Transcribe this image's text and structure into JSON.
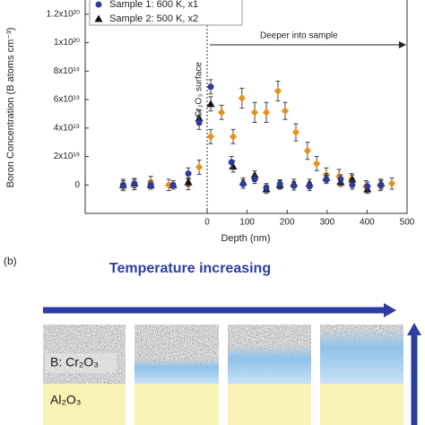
{
  "chart_data": {
    "type": "scatter",
    "xlabel": "Depth (nm)",
    "ylabel": "Boron Concentration (B atoms cm⁻³)",
    "annotations": [
      "Deeper into sample",
      "Cr₂O₃ surface"
    ],
    "xlim": [
      -305,
      500
    ],
    "xticks": [
      0,
      100,
      200,
      300,
      400,
      500
    ],
    "ylim": [
      -2e+19,
      1.3e+20
    ],
    "yticks": [
      0,
      {
        "value": 2e+19,
        "label": "2x10¹⁹"
      },
      {
        "value": 4e+19,
        "label": "4x10¹⁹"
      },
      {
        "value": 6e+19,
        "label": "6x10¹⁹"
      },
      {
        "value": 8e+19,
        "label": "8x10¹⁹"
      },
      {
        "value": 1e+20,
        "label": "1x10²⁰"
      },
      {
        "value": 1.2e+20,
        "label": "1.2x10²⁰"
      }
    ],
    "series": [
      {
        "name": "Sample 1: 600 K, x1",
        "color": "#2d3a9e",
        "marker": "circle",
        "x": [
          -210,
          -182,
          -141,
          -85,
          -47,
          -20,
          9,
          61,
          90,
          119,
          148,
          182,
          217,
          256,
          298,
          334,
          363,
          401,
          435
        ],
        "values": [
          0,
          1e+18,
          0,
          0,
          8e+18,
          4.4e+19,
          6.9e+19,
          1.6e+19,
          6e+17,
          4e+18,
          -2e+18,
          6e+17,
          -6e+17,
          -1e+18,
          4e+18,
          4e+18,
          0,
          -1e+18,
          0
        ],
        "errors": [
          3e+18,
          3e+18,
          3e+18,
          3e+18,
          4e+18,
          5e+18,
          5e+18,
          4e+18,
          3e+18,
          3e+18,
          3e+18,
          3e+18,
          3e+18,
          3e+18,
          3e+18,
          3e+18,
          3e+18,
          3e+18,
          3e+18
        ]
      },
      {
        "name": "Sample 2: 500 K, x2",
        "color": "#111111",
        "marker": "triangle",
        "x": [
          -210,
          -182,
          -141,
          -85,
          -47,
          -20,
          9,
          65,
          90,
          119,
          148,
          182,
          217,
          256,
          298,
          334,
          363,
          401,
          435
        ],
        "values": [
          0,
          1e+18,
          0,
          0,
          2e+18,
          4.7e+19,
          5.7e+19,
          1.3e+19,
          2e+18,
          7e+18,
          -3e+18,
          0,
          1e+18,
          1e+18,
          5e+18,
          2e+18,
          4e+18,
          -3e+18,
          1e+18
        ],
        "errors": [
          3e+18,
          3e+18,
          3e+18,
          3e+18,
          3e+18,
          5e+18,
          5e+18,
          4e+18,
          3e+18,
          3e+18,
          3e+18,
          3e+18,
          3e+18,
          3e+18,
          3e+18,
          3e+18,
          3e+18,
          3e+18,
          3e+18
        ]
      },
      {
        "color": "#e8901c",
        "marker": "diamond",
        "x": [
          -210,
          -182,
          -141,
          -96,
          -47,
          -20,
          9,
          36,
          65,
          87,
          119,
          148,
          177,
          195,
          222,
          251,
          274,
          298,
          330,
          361,
          397,
          433,
          462
        ],
        "values": [
          0,
          6e+17,
          2e+18,
          0,
          6e+17,
          1.25e+19,
          3.4e+19,
          5.1e+19,
          3.4e+19,
          6.1e+19,
          5.1e+19,
          5.1e+19,
          6.6e+19,
          5.2e+19,
          3.7e+19,
          2.4e+19,
          1.5e+19,
          7e+18,
          6e+18,
          4e+18,
          -1e+18,
          0,
          1e+18
        ],
        "errors": [
          4e+18,
          4e+18,
          4e+18,
          4e+18,
          4e+18,
          5e+18,
          5e+18,
          5e+18,
          5e+18,
          7e+18,
          7e+18,
          7e+18,
          7e+18,
          6e+18,
          6e+18,
          6e+18,
          5e+18,
          5e+18,
          5e+18,
          4e+18,
          4e+18,
          4e+18,
          4e+18
        ]
      }
    ]
  },
  "panel_b": {
    "label": "(b)",
    "arrow_label": "Temperature increasing",
    "layers": [
      "B: Cr₂O₃",
      "Al₂O₃"
    ]
  }
}
